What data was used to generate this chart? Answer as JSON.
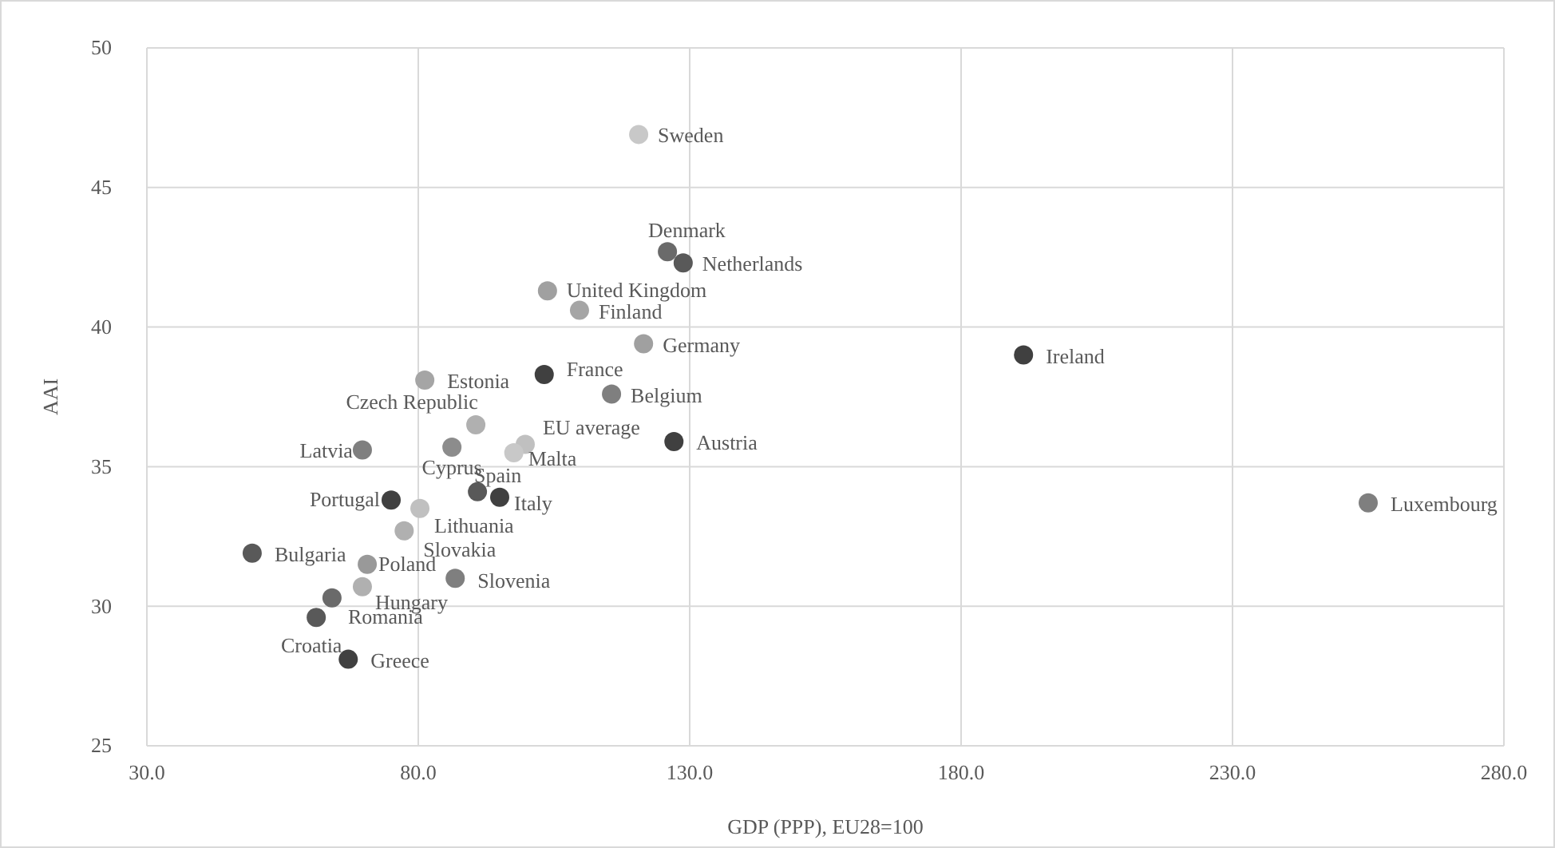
{
  "chart_data": {
    "type": "scatter",
    "xlabel": "GDP (PPP), EU28=100",
    "ylabel": "AAI",
    "xlim": [
      30,
      280
    ],
    "xticks": [
      {
        "value": 30,
        "label": "30.0"
      },
      {
        "value": 80,
        "label": "80.0"
      },
      {
        "value": 130,
        "label": "130.0"
      },
      {
        "value": 180,
        "label": "180.0"
      },
      {
        "value": 230,
        "label": "230.0"
      },
      {
        "value": 280,
        "label": "280.0"
      }
    ],
    "ylim": [
      25,
      50
    ],
    "yticks": [
      25,
      30,
      35,
      40,
      45,
      50
    ],
    "grid": true,
    "marker": "circle",
    "x": [
      120.6,
      125.9,
      128.8,
      103.8,
      109.7,
      121.5,
      191.5,
      255,
      81.2,
      103.2,
      115.6,
      90.6,
      69.7,
      86.2,
      99.7,
      97.6,
      127.1,
      90.9,
      95.0,
      75.0,
      80.3,
      77.4,
      49.4,
      70.6,
      86.8,
      69.7,
      64.1,
      61.2,
      67.1
    ],
    "values": [
      46.9,
      42.7,
      42.3,
      41.3,
      40.6,
      39.4,
      39.0,
      33.7,
      38.1,
      38.3,
      37.6,
      36.5,
      35.6,
      35.7,
      35.8,
      35.5,
      35.9,
      34.1,
      33.9,
      33.8,
      33.5,
      32.7,
      31.9,
      31.5,
      31.0,
      30.7,
      30.3,
      29.6,
      28.1
    ],
    "colors": [
      "#c8c8c8",
      "#6a6a6a",
      "#595959",
      "#a0a0a0",
      "#a5a5a5",
      "#a0a0a0",
      "#404040",
      "#7f7f7f",
      "#a5a5a5",
      "#404040",
      "#7f7f7f",
      "#b0b0b0",
      "#7f7f7f",
      "#8c8c8c",
      "#c0c0c0",
      "#c8c8c8",
      "#404040",
      "#595959",
      "#404040",
      "#404040",
      "#c0c0c0",
      "#b0b0b0",
      "#595959",
      "#999999",
      "#7f7f7f",
      "#b0b0b0",
      "#6a6a6a",
      "#595959",
      "#404040"
    ],
    "annotations": [
      {
        "text": "Sweden",
        "x": 120.6,
        "y": 46.9
      },
      {
        "text": "Denmark",
        "x": 125.9,
        "y": 42.7
      },
      {
        "text": "Netherlands",
        "x": 128.8,
        "y": 42.3
      },
      {
        "text": "United Kingdom",
        "x": 103.8,
        "y": 41.3
      },
      {
        "text": "Finland",
        "x": 109.7,
        "y": 40.6
      },
      {
        "text": "Germany",
        "x": 121.5,
        "y": 39.4
      },
      {
        "text": "Ireland",
        "x": 191.5,
        "y": 39.0
      },
      {
        "text": "Luxembourg",
        "x": 255,
        "y": 33.7
      },
      {
        "text": "Estonia",
        "x": 81.2,
        "y": 38.1
      },
      {
        "text": "France",
        "x": 103.2,
        "y": 38.3
      },
      {
        "text": "Belgium",
        "x": 115.6,
        "y": 37.6
      },
      {
        "text": "Czech Republic",
        "x": 90.6,
        "y": 36.5
      },
      {
        "text": "Latvia",
        "x": 69.7,
        "y": 35.6
      },
      {
        "text": "Cyprus",
        "x": 86.2,
        "y": 35.7
      },
      {
        "text": "EU average",
        "x": 99.7,
        "y": 35.8
      },
      {
        "text": "Malta",
        "x": 97.6,
        "y": 35.5
      },
      {
        "text": "Austria",
        "x": 127.1,
        "y": 35.9
      },
      {
        "text": "Spain",
        "x": 90.9,
        "y": 34.1
      },
      {
        "text": "Italy",
        "x": 95.0,
        "y": 33.9
      },
      {
        "text": "Portugal",
        "x": 75.0,
        "y": 33.8
      },
      {
        "text": "Lithuania",
        "x": 80.3,
        "y": 33.5
      },
      {
        "text": "Slovakia",
        "x": 77.4,
        "y": 32.7
      },
      {
        "text": "Bulgaria",
        "x": 49.4,
        "y": 31.9
      },
      {
        "text": "Poland",
        "x": 70.6,
        "y": 31.5
      },
      {
        "text": "Slovenia",
        "x": 86.8,
        "y": 31.0
      },
      {
        "text": "Hungary",
        "x": 69.7,
        "y": 30.7
      },
      {
        "text": "Romania",
        "x": 64.1,
        "y": 30.3
      },
      {
        "text": "Croatia",
        "x": 61.2,
        "y": 29.6
      },
      {
        "text": "Greece",
        "x": 67.1,
        "y": 28.1
      }
    ]
  }
}
